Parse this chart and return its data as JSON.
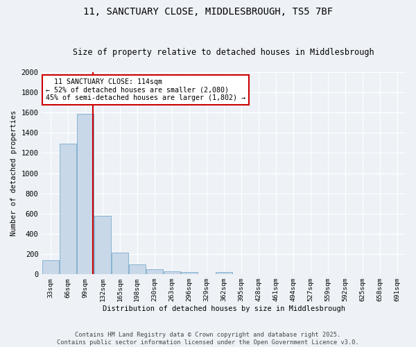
{
  "title1": "11, SANCTUARY CLOSE, MIDDLESBROUGH, TS5 7BF",
  "title2": "Size of property relative to detached houses in Middlesbrough",
  "xlabel": "Distribution of detached houses by size in Middlesbrough",
  "ylabel": "Number of detached properties",
  "bar_color": "#c8d8e8",
  "bar_edge_color": "#7aaacc",
  "bin_labels": [
    "33sqm",
    "66sqm",
    "99sqm",
    "132sqm",
    "165sqm",
    "198sqm",
    "230sqm",
    "263sqm",
    "296sqm",
    "329sqm",
    "362sqm",
    "395sqm",
    "428sqm",
    "461sqm",
    "494sqm",
    "527sqm",
    "559sqm",
    "592sqm",
    "625sqm",
    "658sqm",
    "691sqm"
  ],
  "bar_values": [
    140,
    1295,
    1590,
    580,
    215,
    100,
    48,
    25,
    20,
    0,
    20,
    0,
    0,
    0,
    0,
    0,
    0,
    0,
    0,
    0,
    0
  ],
  "property_line_x": 2.45,
  "ylim": [
    0,
    2000
  ],
  "yticks": [
    0,
    200,
    400,
    600,
    800,
    1000,
    1200,
    1400,
    1600,
    1800,
    2000
  ],
  "annotation_line1": "  11 SANCTUARY CLOSE: 114sqm",
  "annotation_line2": "← 52% of detached houses are smaller (2,080)",
  "annotation_line3": "45% of semi-detached houses are larger (1,802) →",
  "vline_color": "#cc0000",
  "annotation_box_facecolor": "#ffffff",
  "annotation_box_edgecolor": "#cc0000",
  "footer1": "Contains HM Land Registry data © Crown copyright and database right 2025.",
  "footer2": "Contains public sector information licensed under the Open Government Licence v3.0.",
  "background_color": "#eef2f7",
  "grid_color": "#ffffff",
  "title1_fontsize": 10,
  "title2_fontsize": 8.5
}
